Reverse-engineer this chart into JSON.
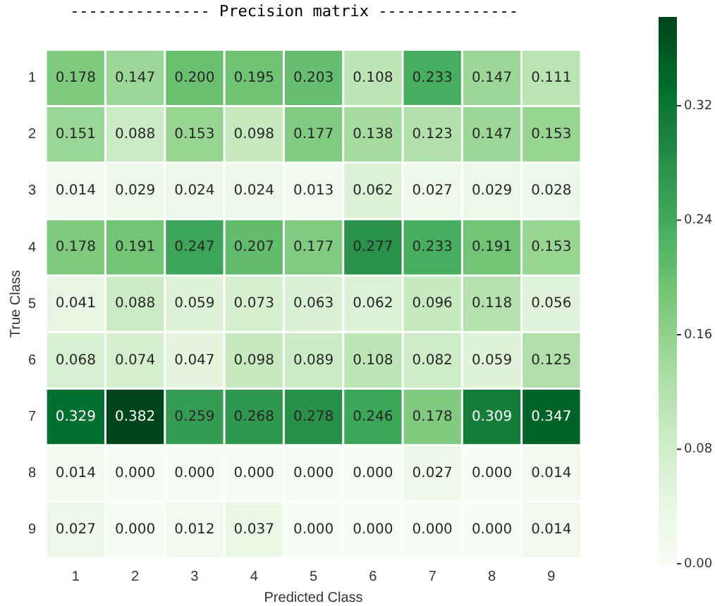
{
  "chart_data": {
    "type": "heatmap",
    "title": "--------------- Precision matrix ---------------",
    "xlabel": "Predicted Class",
    "ylabel": "True Class",
    "categories": [
      "1",
      "2",
      "3",
      "4",
      "5",
      "6",
      "7",
      "8",
      "9"
    ],
    "y_categories": [
      "1",
      "2",
      "3",
      "4",
      "5",
      "6",
      "7",
      "8",
      "9"
    ],
    "cells": [
      [
        0.178,
        0.147,
        0.2,
        0.195,
        0.203,
        0.108,
        0.233,
        0.147,
        0.111
      ],
      [
        0.151,
        0.088,
        0.153,
        0.098,
        0.177,
        0.138,
        0.123,
        0.147,
        0.153
      ],
      [
        0.014,
        0.029,
        0.024,
        0.024,
        0.013,
        0.062,
        0.027,
        0.029,
        0.028
      ],
      [
        0.178,
        0.191,
        0.247,
        0.207,
        0.177,
        0.277,
        0.233,
        0.191,
        0.153
      ],
      [
        0.041,
        0.088,
        0.059,
        0.073,
        0.063,
        0.062,
        0.096,
        0.118,
        0.056
      ],
      [
        0.068,
        0.074,
        0.047,
        0.098,
        0.089,
        0.108,
        0.082,
        0.059,
        0.125
      ],
      [
        0.329,
        0.382,
        0.259,
        0.268,
        0.278,
        0.246,
        0.178,
        0.309,
        0.347
      ],
      [
        0.014,
        0.0,
        0.0,
        0.0,
        0.0,
        0.0,
        0.027,
        0.0,
        0.014
      ],
      [
        0.027,
        0.0,
        0.012,
        0.037,
        0.0,
        0.0,
        0.0,
        0.0,
        0.014
      ]
    ],
    "cell_labels": [
      [
        "0.178",
        "0.147",
        "0.200",
        "0.195",
        "0.203",
        "0.108",
        "0.233",
        "0.147",
        "0.111"
      ],
      [
        "0.151",
        "0.088",
        "0.153",
        "0.098",
        "0.177",
        "0.138",
        "0.123",
        "0.147",
        "0.153"
      ],
      [
        "0.014",
        "0.029",
        "0.024",
        "0.024",
        "0.013",
        "0.062",
        "0.027",
        "0.029",
        "0.028"
      ],
      [
        "0.178",
        "0.191",
        "0.247",
        "0.207",
        "0.177",
        "0.277",
        "0.233",
        "0.191",
        "0.153"
      ],
      [
        "0.041",
        "0.088",
        "0.059",
        "0.073",
        "0.063",
        "0.062",
        "0.096",
        "0.118",
        "0.056"
      ],
      [
        "0.068",
        "0.074",
        "0.047",
        "0.098",
        "0.089",
        "0.108",
        "0.082",
        "0.059",
        "0.125"
      ],
      [
        "0.329",
        "0.382",
        "0.259",
        "0.268",
        "0.278",
        "0.246",
        "0.178",
        "0.309",
        "0.347"
      ],
      [
        "0.014",
        "0.000",
        "0.000",
        "0.000",
        "0.000",
        "0.000",
        "0.027",
        "0.000",
        "0.014"
      ],
      [
        "0.027",
        "0.000",
        "0.012",
        "0.037",
        "0.000",
        "0.000",
        "0.000",
        "0.000",
        "0.014"
      ]
    ],
    "data_labels": true,
    "clim": [
      0,
      0.382
    ],
    "cticks": [
      {
        "value": 0,
        "label": "0.00"
      },
      {
        "value": 0.08,
        "label": "0.08"
      },
      {
        "value": 0.16,
        "label": "0.16"
      },
      {
        "value": 0.24,
        "label": "0.24"
      },
      {
        "value": 0.32,
        "label": "0.32"
      }
    ]
  }
}
